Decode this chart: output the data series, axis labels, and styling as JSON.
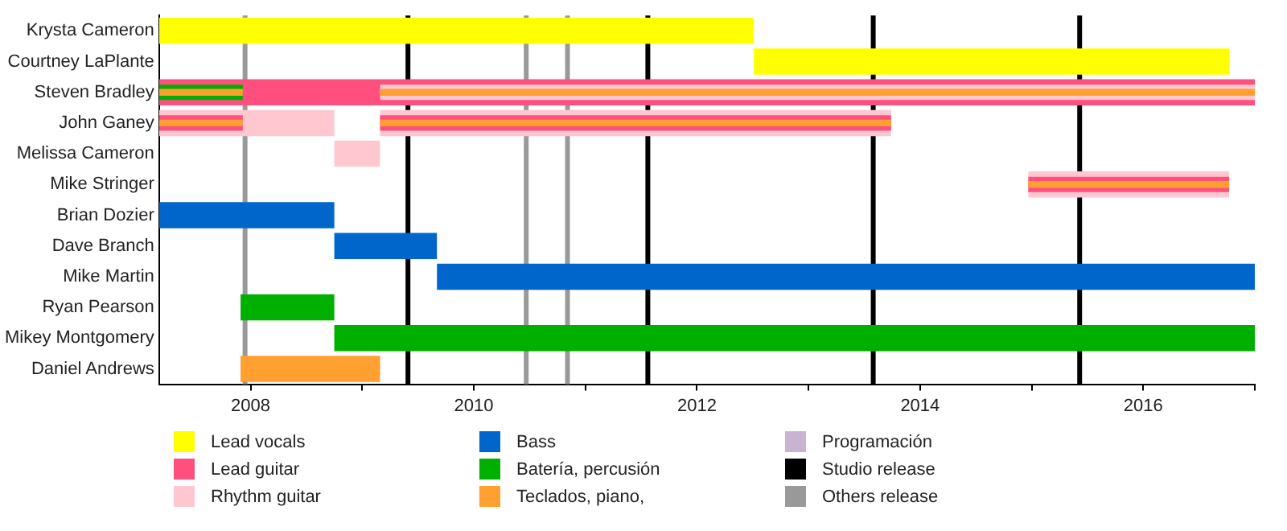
{
  "chart_data": {
    "type": "bar",
    "orientation": "horizontal",
    "categories": [
      "Krysta Cameron",
      "Courtney LaPlante",
      "Steven Bradley",
      "John Ganey",
      "Melissa Cameron",
      "Mike Stringer",
      "Brian Dozier",
      "Dave Branch",
      "Mike Martin",
      "Ryan Pearson",
      "Mikey Montgomery",
      "Daniel Andrews"
    ],
    "series": [
      {
        "name": "Lead vocals",
        "color": "#ffff00",
        "base": [
          2007.18,
          2012.51,
          null,
          null,
          null,
          null,
          null,
          null,
          null,
          null,
          null,
          null
        ],
        "values": [
          5.33,
          4.26,
          null,
          null,
          null,
          null,
          null,
          null,
          null,
          null,
          null,
          null
        ]
      },
      {
        "name": "Lead guitar",
        "color": "#ff4f7f",
        "base": [
          null,
          null,
          2007.18,
          null,
          null,
          null,
          null,
          null,
          null,
          null,
          null,
          null
        ],
        "values": [
          null,
          null,
          9.82,
          null,
          null,
          null,
          null,
          null,
          null,
          null,
          null,
          null
        ]
      },
      {
        "name": "Rhythm guitar",
        "color": "#ffc8d0",
        "base": [
          null,
          null,
          null,
          2007.18,
          2008.75,
          2014.97,
          null,
          null,
          null,
          null,
          null,
          null
        ],
        "values": [
          null,
          null,
          null,
          1.57,
          0.41,
          1.8,
          null,
          null,
          null,
          null,
          null,
          null
        ]
      },
      {
        "color": "#ffc8d0",
        "base": [
          null,
          null,
          null,
          2009.16,
          null,
          null,
          null,
          null,
          null,
          null,
          null,
          null
        ],
        "values": [
          null,
          null,
          null,
          4.58,
          null,
          null,
          null,
          null,
          null,
          null,
          null,
          null
        ]
      },
      {
        "name": "Bass",
        "color": "#0066cc",
        "base": [
          null,
          null,
          null,
          null,
          null,
          null,
          2007.18,
          2008.75,
          2009.67,
          null,
          null,
          null
        ],
        "values": [
          null,
          null,
          null,
          null,
          null,
          null,
          1.57,
          0.92,
          7.33,
          null,
          null,
          null
        ]
      },
      {
        "name": "Batería, percusión",
        "color": "#00b000",
        "base": [
          null,
          null,
          null,
          null,
          null,
          null,
          null,
          null,
          null,
          2007.91,
          2008.75,
          null
        ],
        "values": [
          null,
          null,
          null,
          null,
          null,
          null,
          null,
          null,
          null,
          0.84,
          8.25,
          null
        ]
      },
      {
        "name": "Teclados, piano,",
        "color": "#ffa030",
        "base": [
          null,
          null,
          null,
          null,
          null,
          null,
          null,
          null,
          null,
          null,
          null,
          2007.91
        ],
        "values": [
          null,
          null,
          null,
          null,
          null,
          null,
          null,
          null,
          null,
          null,
          null,
          1.25
        ]
      },
      {
        "name": "Programación",
        "color": "#c8b4d0",
        "base": [
          null,
          null,
          null,
          null,
          null,
          null,
          null,
          null,
          null,
          null,
          null,
          null
        ],
        "values": [
          null,
          null,
          null,
          null,
          null,
          null,
          null,
          null,
          null,
          null,
          null,
          null
        ]
      },
      {
        "color": "#ffc8d0",
        "base": [
          null,
          null,
          2009.16,
          null,
          null,
          null,
          null,
          null,
          null,
          null,
          null,
          null
        ],
        "values": [
          null,
          null,
          7.84,
          null,
          null,
          null,
          null,
          null,
          null,
          null,
          null,
          null
        ]
      },
      {
        "color": "#ff4f7f",
        "base": [
          null,
          null,
          null,
          2007.18,
          null,
          2014.97,
          null,
          null,
          null,
          null,
          null,
          null
        ],
        "values": [
          null,
          null,
          null,
          0.75,
          null,
          1.8,
          null,
          null,
          null,
          null,
          null,
          null
        ]
      },
      {
        "color": "#ff4f7f",
        "base": [
          null,
          null,
          null,
          2009.16,
          null,
          null,
          null,
          null,
          null,
          null,
          null,
          null
        ],
        "values": [
          null,
          null,
          null,
          4.58,
          null,
          null,
          null,
          null,
          null,
          null,
          null,
          null
        ]
      },
      {
        "color": "#00b000",
        "base": [
          null,
          null,
          2007.18,
          null,
          null,
          null,
          null,
          null,
          null,
          null,
          null,
          null
        ],
        "values": [
          null,
          null,
          0.75,
          null,
          null,
          null,
          null,
          null,
          null,
          null,
          null,
          null
        ]
      },
      {
        "color": "#ffa030",
        "base": [
          null,
          null,
          2007.18,
          2007.18,
          null,
          2014.97,
          null,
          null,
          null,
          null,
          null,
          null
        ],
        "values": [
          null,
          null,
          0.75,
          0.75,
          null,
          1.8,
          null,
          null,
          null,
          null,
          null,
          null
        ]
      },
      {
        "color": "#ffa030",
        "base": [
          null,
          null,
          2009.16,
          2009.16,
          null,
          null,
          null,
          null,
          null,
          null,
          null,
          null
        ],
        "values": [
          null,
          null,
          7.84,
          4.58,
          null,
          null,
          null,
          null,
          null,
          null,
          null,
          null
        ]
      }
    ],
    "xlim": [
      2007.18,
      2017.0
    ],
    "xticks": [
      2008,
      {
        "value": 2009,
        "label": null
      },
      2010,
      {
        "value": 2011,
        "label": null
      },
      2012,
      {
        "value": 2013,
        "label": null
      },
      2014,
      {
        "value": 2015,
        "label": null
      },
      2016,
      {
        "value": 2017,
        "label": null
      }
    ],
    "ref_lines": [
      {
        "axis": "x",
        "value": 2009.41,
        "label": "Studio release",
        "color": "#000000"
      },
      {
        "axis": "x",
        "value": 2011.56,
        "color": "#000000"
      },
      {
        "axis": "x",
        "value": 2013.58,
        "color": "#000000"
      },
      {
        "axis": "x",
        "value": 2015.43,
        "color": "#000000"
      },
      {
        "axis": "x",
        "value": 2007.95,
        "label": "Others release",
        "color": "#999999"
      },
      {
        "axis": "x",
        "value": 2010.47,
        "color": "#999999"
      },
      {
        "axis": "x",
        "value": 2010.84,
        "color": "#999999"
      }
    ],
    "legend": "bottom",
    "grid": false
  }
}
